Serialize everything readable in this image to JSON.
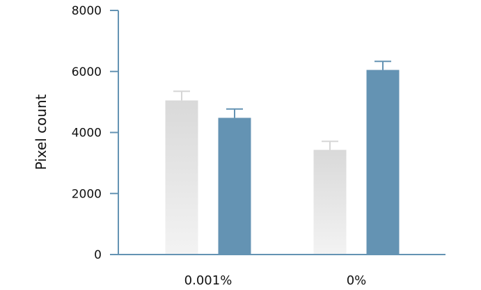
{
  "chart_data": {
    "type": "bar",
    "title": "",
    "xlabel": "",
    "ylabel": "Pixel count",
    "ylim": [
      0,
      8000
    ],
    "yticks": [
      0,
      2000,
      4000,
      6000,
      8000
    ],
    "categories": [
      "0.001%",
      "0%"
    ],
    "series": [
      {
        "values": [
          5050,
          3430
        ],
        "errors": [
          300,
          280
        ],
        "color_top": "#d9d9d9",
        "color_bottom": "#f3f3f3",
        "error_color": "#d6d6d6"
      },
      {
        "values": [
          4480,
          6050
        ],
        "errors": [
          290,
          280
        ],
        "color": "#6493b3",
        "error_color": "#6493b3"
      }
    ],
    "grid": false,
    "legend": "none"
  },
  "colors": {
    "axis": "#6493b3",
    "text": "#111111"
  }
}
